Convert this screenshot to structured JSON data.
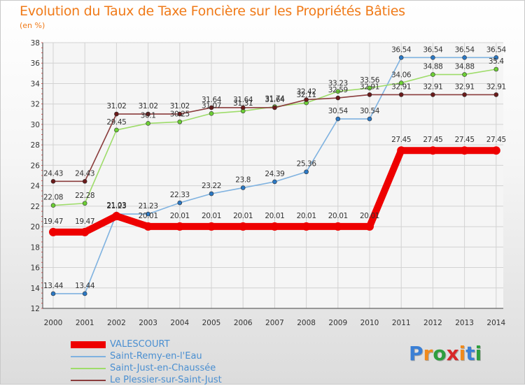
{
  "header": {
    "title": "Evolution du Taux de Taxe Foncière sur les Propriétés Bâties",
    "unit": "(en %)"
  },
  "logo": {
    "text": "Proxiti",
    "letters": [
      "P",
      "r",
      "o",
      "x",
      "i",
      "t",
      "i"
    ],
    "colors": [
      "#3a7fd5",
      "#f08a1c",
      "#2e9e3e",
      "#d8282a",
      "#f08a1c",
      "#3a7fd5",
      "#2e9e3e"
    ]
  },
  "chart_data": {
    "type": "line",
    "title": "Evolution du Taux de Taxe Foncière sur les Propriétés Bâties",
    "ylabel": "(en %)",
    "xlabel": "",
    "x": [
      "2000",
      "2001",
      "2002",
      "2003",
      "2004",
      "2005",
      "2006",
      "2007",
      "2008",
      "2009",
      "2010",
      "2011",
      "2012",
      "2013",
      "2014"
    ],
    "ylim": [
      12,
      38
    ],
    "yticks": [
      12,
      14,
      16,
      18,
      20,
      22,
      24,
      26,
      28,
      30,
      32,
      34,
      36,
      38
    ],
    "grid": true,
    "legend_position": "bottom-left",
    "series": [
      {
        "name": "VALESCOURT",
        "color": "#ee0000",
        "marker": "#ee0000",
        "values": [
          19.47,
          19.47,
          21.03,
          20.01,
          20.01,
          20.01,
          20.01,
          20.01,
          20.01,
          20.01,
          20.01,
          27.45,
          27.45,
          27.45,
          27.45
        ],
        "labels": [
          "19.47",
          "19.47",
          "21.03",
          "20.01",
          "20.01",
          "20.01",
          "20.01",
          "20.01",
          "20.01",
          "20.01",
          "20.01",
          "27.45",
          "27.45",
          "27.45",
          "27.45"
        ]
      },
      {
        "name": "Saint-Remy-en-l'Eau",
        "color": "#7fb2e0",
        "marker": "#2b78c4",
        "values": [
          13.44,
          13.44,
          21.23,
          21.23,
          22.33,
          23.22,
          23.8,
          24.39,
          25.36,
          30.54,
          30.54,
          36.54,
          36.54,
          36.54,
          36.54
        ],
        "labels": [
          "13.44",
          "13.44",
          "21.23",
          "21.23",
          "22.33",
          "23.22",
          "23.8",
          "24.39",
          "25.36",
          "30.54",
          "30.54",
          "36.54",
          "36.54",
          "36.54",
          "36.54"
        ]
      },
      {
        "name": "Saint-Just-en-Chaussée",
        "color": "#9edc6a",
        "marker": "#6ccf35",
        "values": [
          22.08,
          22.28,
          29.45,
          30.1,
          30.25,
          31.07,
          31.31,
          31.74,
          32.11,
          33.23,
          33.56,
          34.06,
          34.88,
          34.88,
          35.4
        ],
        "labels": [
          "22.08",
          "22.28",
          "29.45",
          "30.1",
          "30.25",
          "31.07",
          "31.31",
          "31.74",
          "32.11",
          "33.23",
          "33.56",
          "34.06",
          "34.88",
          "34.88",
          "35.4"
        ]
      },
      {
        "name": "Le Plessier-sur-Saint-Just",
        "color": "#8a3c3c",
        "marker": "#6a1a1a",
        "values": [
          24.43,
          24.43,
          31.02,
          31.02,
          31.02,
          31.64,
          31.64,
          31.64,
          32.42,
          32.59,
          32.91,
          32.91,
          32.91,
          32.91,
          32.91
        ],
        "labels": [
          "24.43",
          "24.43",
          "31.02",
          "31.02",
          "31.02",
          "31.64",
          "31.64",
          "31.64",
          "32.42",
          "32.59",
          "32.91",
          "32.91",
          "32.91",
          "32.91",
          "32.91"
        ]
      }
    ]
  }
}
